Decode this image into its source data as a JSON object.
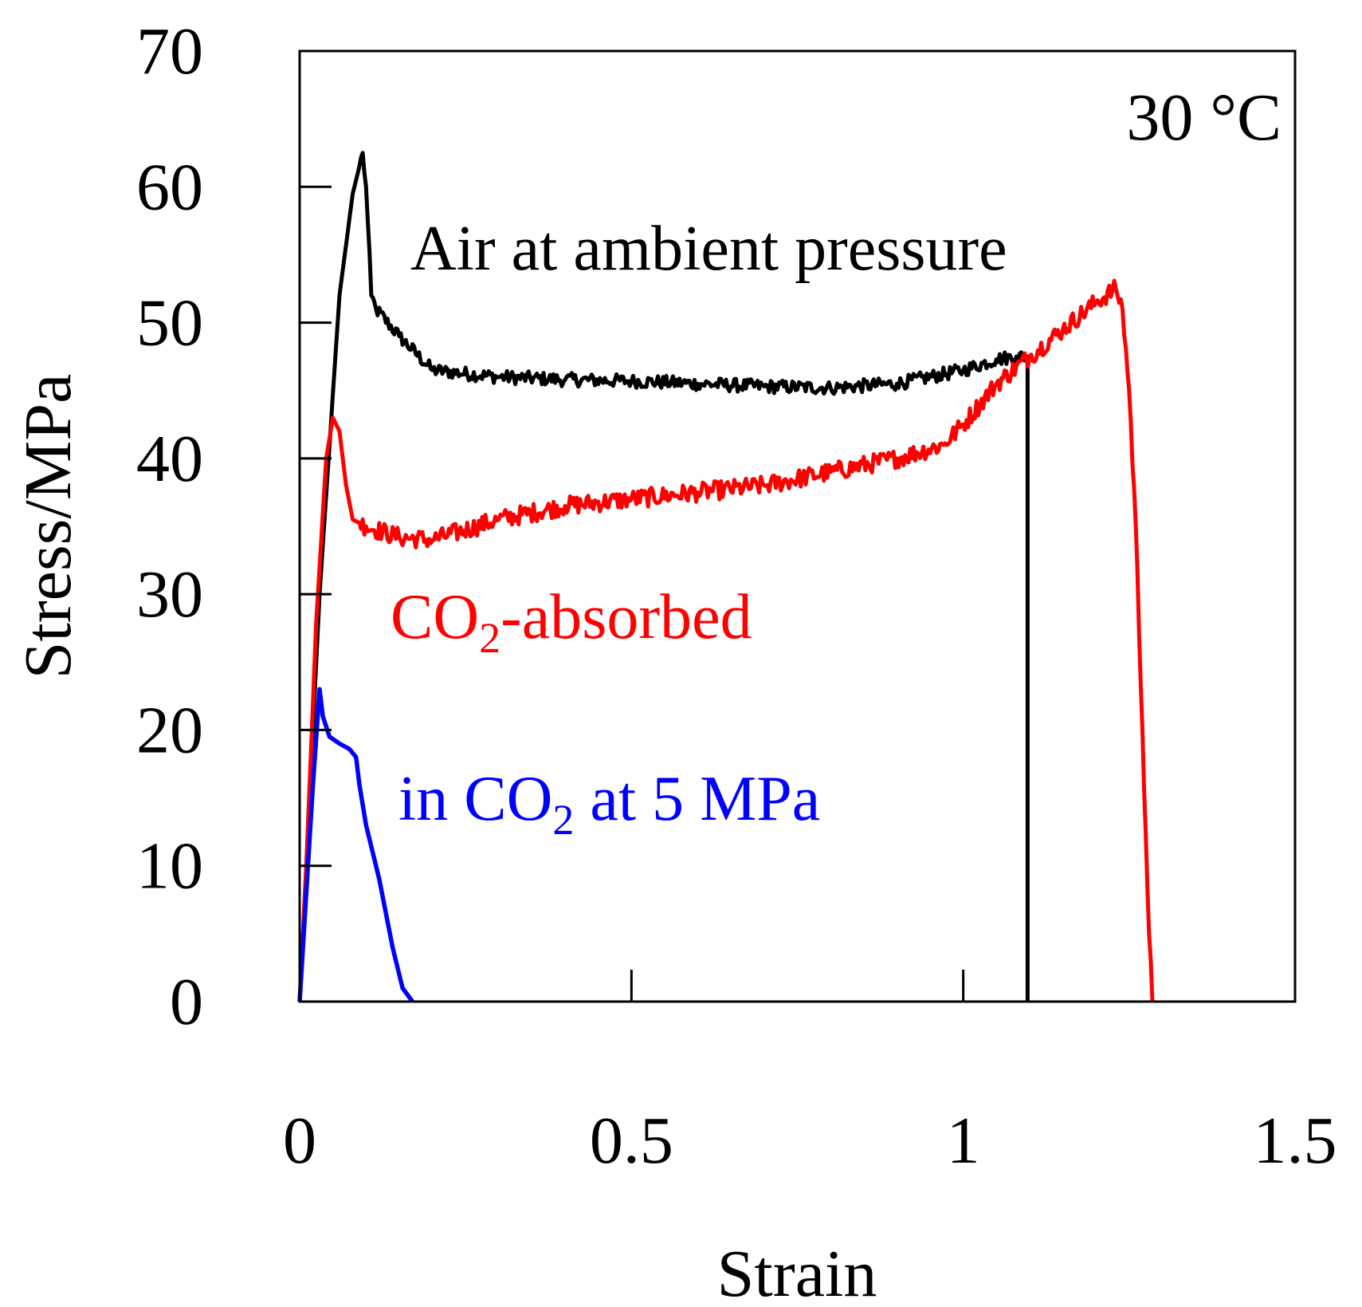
{
  "chart_data": {
    "type": "line",
    "title": "",
    "xlabel": "Strain",
    "ylabel": "Stress/MPa",
    "xlim": [
      0,
      1.5
    ],
    "ylim": [
      0,
      70
    ],
    "xticks": [
      0,
      0.5,
      1,
      1.5
    ],
    "xtick_labels": [
      "0",
      "0.5",
      "1",
      "1.5"
    ],
    "yticks": [
      0,
      10,
      20,
      30,
      40,
      50,
      60,
      70
    ],
    "ytick_labels": [
      "0",
      "10",
      "20",
      "30",
      "40",
      "50",
      "60",
      "70"
    ],
    "grid": false,
    "annotations": {
      "temperature": "30 °C",
      "air": "Air at ambient pressure",
      "co2_absorbed_prefix": "CO",
      "co2_absorbed_sub": "2",
      "co2_absorbed_suffix": "-absorbed",
      "in_co2_prefix": "in CO",
      "in_co2_sub": "2",
      "in_co2_suffix": " at 5 MPa"
    },
    "series": [
      {
        "name": "Air at ambient pressure",
        "color": "#000000",
        "noise": 0.5,
        "points": [
          [
            0,
            0
          ],
          [
            0.03,
            30
          ],
          [
            0.06,
            52
          ],
          [
            0.08,
            59.5
          ],
          [
            0.095,
            62.5
          ],
          [
            0.1,
            60
          ],
          [
            0.108,
            52
          ],
          [
            0.115,
            51
          ],
          [
            0.15,
            49
          ],
          [
            0.2,
            46.5
          ],
          [
            0.3,
            46
          ],
          [
            0.4,
            45.8
          ],
          [
            0.5,
            45.7
          ],
          [
            0.6,
            45.5
          ],
          [
            0.7,
            45.3
          ],
          [
            0.8,
            45.2
          ],
          [
            0.9,
            45.5
          ],
          [
            1.0,
            46.5
          ],
          [
            1.05,
            47.3
          ],
          [
            1.08,
            47.5
          ],
          [
            1.097,
            47.5
          ],
          [
            1.097,
            0
          ]
        ]
      },
      {
        "name": "CO2-absorbed",
        "color": "#ff0000",
        "noise": 0.7,
        "points": [
          [
            0,
            0
          ],
          [
            0.01,
            10
          ],
          [
            0.025,
            28
          ],
          [
            0.04,
            40
          ],
          [
            0.05,
            43
          ],
          [
            0.06,
            42
          ],
          [
            0.07,
            38
          ],
          [
            0.08,
            35.5
          ],
          [
            0.1,
            35
          ],
          [
            0.15,
            34.2
          ],
          [
            0.2,
            34
          ],
          [
            0.3,
            35.5
          ],
          [
            0.4,
            36.5
          ],
          [
            0.5,
            37
          ],
          [
            0.6,
            37.5
          ],
          [
            0.7,
            38
          ],
          [
            0.8,
            39
          ],
          [
            0.9,
            40
          ],
          [
            0.97,
            41
          ],
          [
            1.0,
            42.5
          ],
          [
            1.05,
            45.5
          ],
          [
            1.1,
            47.5
          ],
          [
            1.15,
            49.5
          ],
          [
            1.2,
            51.5
          ],
          [
            1.23,
            52.5
          ],
          [
            1.24,
            51
          ],
          [
            1.25,
            45
          ],
          [
            1.26,
            35
          ],
          [
            1.27,
            20
          ],
          [
            1.28,
            5
          ],
          [
            1.285,
            0
          ]
        ]
      },
      {
        "name": "in CO2 at 5 MPa",
        "color": "#0000ff",
        "noise": 0,
        "points": [
          [
            0,
            0
          ],
          [
            0.01,
            8
          ],
          [
            0.02,
            16
          ],
          [
            0.03,
            23
          ],
          [
            0.035,
            21
          ],
          [
            0.045,
            19.5
          ],
          [
            0.06,
            19
          ],
          [
            0.075,
            18.6
          ],
          [
            0.085,
            18
          ],
          [
            0.09,
            16
          ],
          [
            0.1,
            13
          ],
          [
            0.12,
            9
          ],
          [
            0.14,
            4
          ],
          [
            0.155,
            1
          ],
          [
            0.17,
            0
          ]
        ]
      }
    ]
  }
}
